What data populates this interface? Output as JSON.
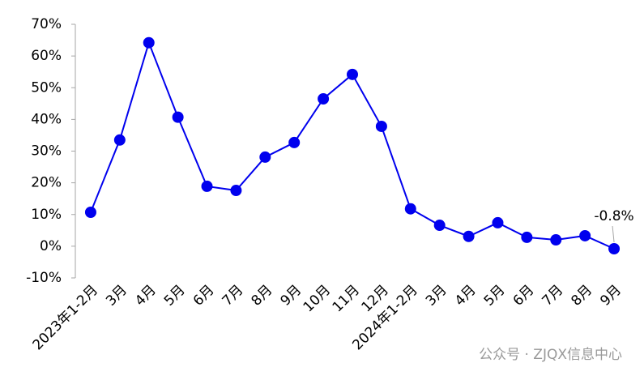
{
  "chart_data": {
    "type": "line",
    "categories": [
      "2023年1-2月",
      "3月",
      "4月",
      "5月",
      "6月",
      "7月",
      "8月",
      "9月",
      "10月",
      "11月",
      "12月",
      "2024年1-2月",
      "3月",
      "4月",
      "5月",
      "6月",
      "7月",
      "8月",
      "9月"
    ],
    "series": [
      {
        "color": "#0000ee",
        "values": [
          10.7,
          33.5,
          64.2,
          40.7,
          18.9,
          17.6,
          28.1,
          32.7,
          46.5,
          54.2,
          37.8,
          11.8,
          6.6,
          3.1,
          7.4,
          2.8,
          2.0,
          3.3,
          -0.8
        ],
        "value_labels": [
          null,
          null,
          null,
          null,
          null,
          null,
          null,
          null,
          null,
          null,
          null,
          null,
          null,
          null,
          null,
          null,
          null,
          null,
          "-0.8%"
        ]
      }
    ],
    "ylim": [
      -10,
      70
    ],
    "yticks": [
      {
        "value": -10,
        "label": "-10%"
      },
      {
        "value": 0,
        "label": "0%"
      },
      {
        "value": 10,
        "label": "10%"
      },
      {
        "value": 20,
        "label": "20%"
      },
      {
        "value": 30,
        "label": "30%"
      },
      {
        "value": 40,
        "label": "40%"
      },
      {
        "value": 50,
        "label": "50%"
      },
      {
        "value": 60,
        "label": "60%"
      },
      {
        "value": 70,
        "label": "70%"
      }
    ],
    "grid": false,
    "watermark": "公众号 · ZJQX信息中心"
  }
}
